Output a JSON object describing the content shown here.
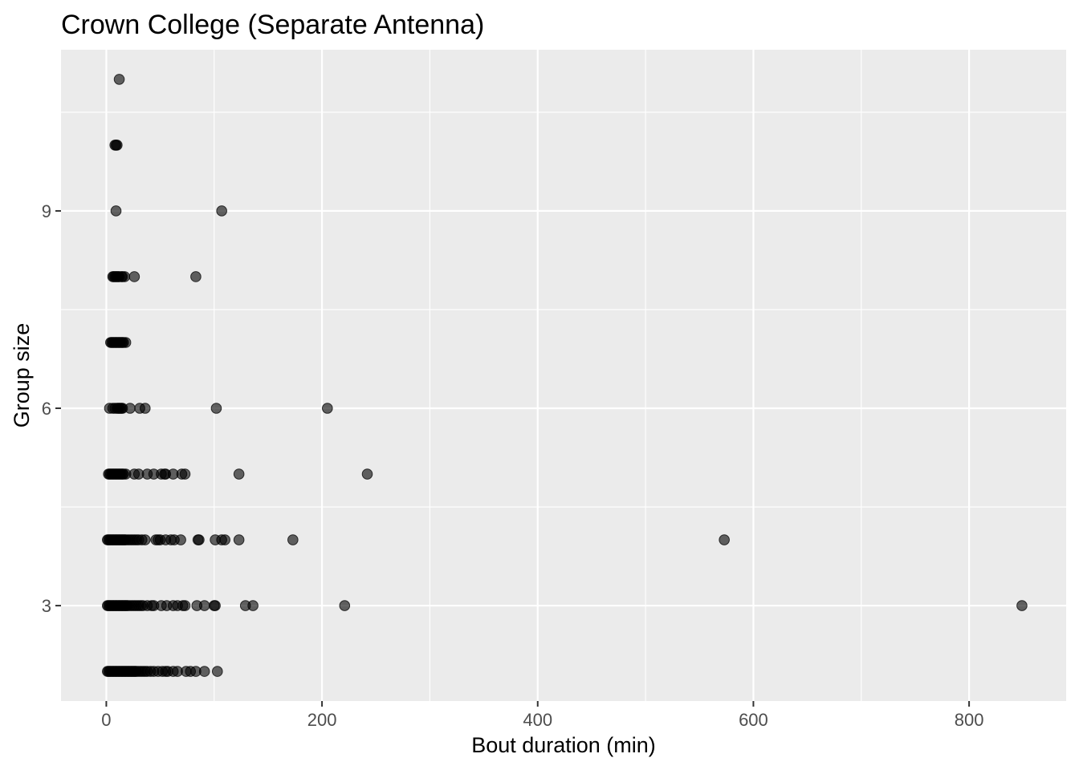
{
  "chart_data": {
    "type": "scatter",
    "title": "Crown College (Separate Antenna)",
    "xlabel": "Bout duration (min)",
    "ylabel": "Group size",
    "xlim": [
      -42,
      890
    ],
    "ylim": [
      1.55,
      11.45
    ],
    "x_ticks": [
      0,
      200,
      400,
      600,
      800
    ],
    "x_minor_ticks": [
      100,
      300,
      500,
      700
    ],
    "y_ticks": [
      3,
      6,
      9
    ],
    "y_minor_ticks": [
      1.5,
      4.5,
      7.5,
      10.5
    ],
    "grid": true,
    "point_color": "#000000",
    "point_opacity": 0.6,
    "panel_color": "#ebebeb",
    "grid_color": "#ffffff",
    "series": [
      {
        "points": [
          [
            1,
            2
          ],
          [
            2,
            2
          ],
          [
            3,
            2
          ],
          [
            4,
            2
          ],
          [
            5,
            2
          ],
          [
            6,
            2
          ],
          [
            7,
            2
          ],
          [
            8,
            2
          ],
          [
            9,
            2
          ],
          [
            10,
            2
          ],
          [
            11,
            2
          ],
          [
            12,
            2
          ],
          [
            13,
            2
          ],
          [
            14,
            2
          ],
          [
            15,
            2
          ],
          [
            16,
            2
          ],
          [
            17,
            2
          ],
          [
            18,
            2
          ],
          [
            19,
            2
          ],
          [
            20,
            2
          ],
          [
            21,
            2
          ],
          [
            22,
            2
          ],
          [
            23,
            2
          ],
          [
            24,
            2
          ],
          [
            25,
            2
          ],
          [
            26,
            2
          ],
          [
            27,
            2
          ],
          [
            28,
            2
          ],
          [
            30,
            2
          ],
          [
            32,
            2
          ],
          [
            34,
            2
          ],
          [
            36,
            2
          ],
          [
            38,
            2
          ],
          [
            41,
            2
          ],
          [
            44,
            2
          ],
          [
            48,
            2
          ],
          [
            52,
            2
          ],
          [
            55,
            2
          ],
          [
            57,
            2
          ],
          [
            62,
            2
          ],
          [
            66,
            2
          ],
          [
            74,
            2
          ],
          [
            78,
            2
          ],
          [
            83,
            2
          ],
          [
            91,
            2
          ],
          [
            103,
            2
          ],
          [
            1,
            3
          ],
          [
            2,
            3
          ],
          [
            3,
            3
          ],
          [
            4,
            3
          ],
          [
            5,
            3
          ],
          [
            6,
            3
          ],
          [
            7,
            3
          ],
          [
            8,
            3
          ],
          [
            9,
            3
          ],
          [
            10,
            3
          ],
          [
            11,
            3
          ],
          [
            12,
            3
          ],
          [
            13,
            3
          ],
          [
            14,
            3
          ],
          [
            15,
            3
          ],
          [
            16,
            3
          ],
          [
            17,
            3
          ],
          [
            18,
            3
          ],
          [
            19,
            3
          ],
          [
            20,
            3
          ],
          [
            22,
            3
          ],
          [
            24,
            3
          ],
          [
            26,
            3
          ],
          [
            28,
            3
          ],
          [
            30,
            3
          ],
          [
            32,
            3
          ],
          [
            34,
            3
          ],
          [
            38,
            3
          ],
          [
            42,
            3
          ],
          [
            44,
            3
          ],
          [
            51,
            3
          ],
          [
            56,
            3
          ],
          [
            62,
            3
          ],
          [
            66,
            3
          ],
          [
            71,
            3
          ],
          [
            73,
            3
          ],
          [
            84,
            3
          ],
          [
            91,
            3
          ],
          [
            100,
            3
          ],
          [
            101,
            3
          ],
          [
            129,
            3
          ],
          [
            136,
            3
          ],
          [
            221,
            3
          ],
          [
            849,
            3
          ],
          [
            1,
            4
          ],
          [
            2,
            4
          ],
          [
            3,
            4
          ],
          [
            4,
            4
          ],
          [
            5,
            4
          ],
          [
            6,
            4
          ],
          [
            7,
            4
          ],
          [
            8,
            4
          ],
          [
            9,
            4
          ],
          [
            10,
            4
          ],
          [
            11,
            4
          ],
          [
            12,
            4
          ],
          [
            13,
            4
          ],
          [
            14,
            4
          ],
          [
            15,
            4
          ],
          [
            16,
            4
          ],
          [
            17,
            4
          ],
          [
            18,
            4
          ],
          [
            20,
            4
          ],
          [
            22,
            4
          ],
          [
            24,
            4
          ],
          [
            26,
            4
          ],
          [
            28,
            4
          ],
          [
            30,
            4
          ],
          [
            33,
            4
          ],
          [
            36,
            4
          ],
          [
            46,
            4
          ],
          [
            48,
            4
          ],
          [
            50,
            4
          ],
          [
            55,
            4
          ],
          [
            60,
            4
          ],
          [
            63,
            4
          ],
          [
            69,
            4
          ],
          [
            85,
            4
          ],
          [
            86,
            4
          ],
          [
            101,
            4
          ],
          [
            107,
            4
          ],
          [
            110,
            4
          ],
          [
            123,
            4
          ],
          [
            173,
            4
          ],
          [
            573,
            4
          ],
          [
            2,
            5
          ],
          [
            3,
            5
          ],
          [
            4,
            5
          ],
          [
            5,
            5
          ],
          [
            6,
            5
          ],
          [
            7,
            5
          ],
          [
            8,
            5
          ],
          [
            9,
            5
          ],
          [
            10,
            5
          ],
          [
            11,
            5
          ],
          [
            12,
            5
          ],
          [
            13,
            5
          ],
          [
            14,
            5
          ],
          [
            15,
            5
          ],
          [
            16,
            5
          ],
          [
            18,
            5
          ],
          [
            26,
            5
          ],
          [
            30,
            5
          ],
          [
            38,
            5
          ],
          [
            44,
            5
          ],
          [
            51,
            5
          ],
          [
            54,
            5
          ],
          [
            55,
            5
          ],
          [
            62,
            5
          ],
          [
            70,
            5
          ],
          [
            73,
            5
          ],
          [
            123,
            5
          ],
          [
            242,
            5
          ],
          [
            3,
            6
          ],
          [
            6,
            6
          ],
          [
            8,
            6
          ],
          [
            10,
            6
          ],
          [
            11,
            6
          ],
          [
            12,
            6
          ],
          [
            13,
            6
          ],
          [
            14,
            6
          ],
          [
            15,
            6
          ],
          [
            22,
            6
          ],
          [
            31,
            6
          ],
          [
            36,
            6
          ],
          [
            102,
            6
          ],
          [
            205,
            6
          ],
          [
            4,
            7
          ],
          [
            5,
            7
          ],
          [
            6,
            7
          ],
          [
            7,
            7
          ],
          [
            8,
            7
          ],
          [
            9,
            7
          ],
          [
            10,
            7
          ],
          [
            11,
            7
          ],
          [
            12,
            7
          ],
          [
            13,
            7
          ],
          [
            14,
            7
          ],
          [
            15,
            7
          ],
          [
            16,
            7
          ],
          [
            18,
            7
          ],
          [
            6,
            8
          ],
          [
            7,
            8
          ],
          [
            8,
            8
          ],
          [
            9,
            8
          ],
          [
            10,
            8
          ],
          [
            11,
            8
          ],
          [
            12,
            8
          ],
          [
            14,
            8
          ],
          [
            15,
            8
          ],
          [
            17,
            8
          ],
          [
            26,
            8
          ],
          [
            83,
            8
          ],
          [
            9,
            9
          ],
          [
            107,
            9
          ],
          [
            8,
            10
          ],
          [
            9,
            10
          ],
          [
            10,
            10
          ],
          [
            12,
            11
          ]
        ]
      }
    ]
  }
}
